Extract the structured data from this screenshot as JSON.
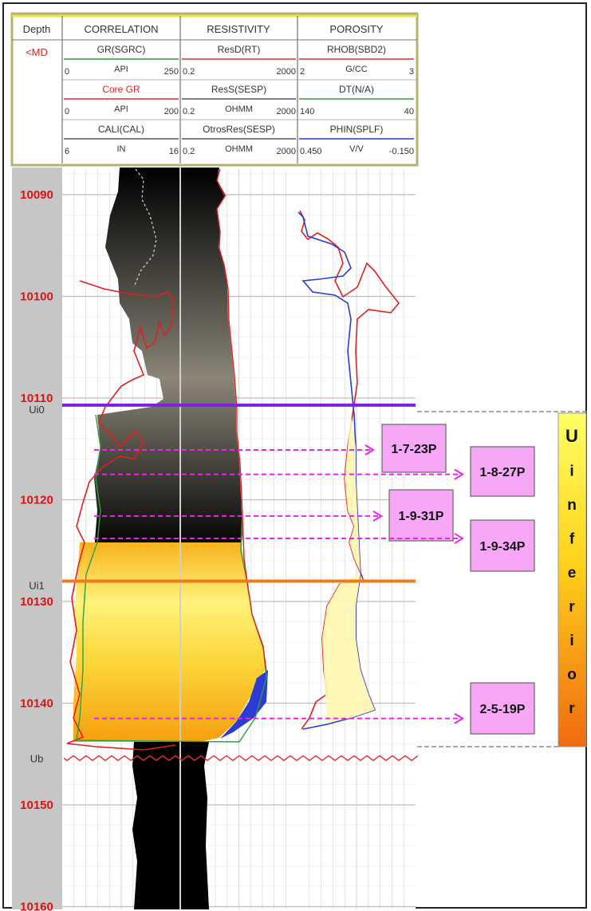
{
  "header": {
    "depth_title": "Depth",
    "depth_unit": "<MD",
    "tracks": [
      {
        "title": "CORRELATION",
        "curves": [
          {
            "name": "GR(SGRC)",
            "unit": "API",
            "min": "0",
            "max": "250",
            "color": "#2e9e3a"
          },
          {
            "name": "Core GR",
            "unit": "API",
            "min": "0",
            "max": "200",
            "color": "#e03030"
          },
          {
            "name": "CALI(CAL)",
            "unit": "IN",
            "min": "6",
            "max": "16",
            "color": "#555555"
          }
        ]
      },
      {
        "title": "RESISTIVITY",
        "curves": [
          {
            "name": "ResD(RT)",
            "unit": "",
            "min": "0.2",
            "max": "2000",
            "color": "#e03030"
          },
          {
            "name": "ResS(SESP)",
            "unit": "OHMM",
            "min": "0.2",
            "max": "2000",
            "color": "#555555"
          },
          {
            "name": "OtrosRes(SESP)",
            "unit": "OHMM",
            "min": "0.2",
            "max": "2000",
            "color": "#555555"
          }
        ]
      },
      {
        "title": "POROSITY",
        "curves": [
          {
            "name": "RHOB(SBD2)",
            "unit": "G/CC",
            "min": "2",
            "max": "3",
            "color": "#e03030"
          },
          {
            "name": "DT(N/A)",
            "unit": "",
            "min": "140",
            "max": "40",
            "color": "#2e9e3a"
          },
          {
            "name": "PHIN(SPLF)",
            "unit": "V/V",
            "min": "0.450",
            "max": "-0.150",
            "color": "#2a3bd6"
          }
        ]
      }
    ]
  },
  "depth_ticks": [
    "10090",
    "10100",
    "10110",
    "10120",
    "10130",
    "10140",
    "10150",
    "10160"
  ],
  "markers": [
    {
      "label": "Ui0",
      "depth": 10110.7,
      "color": "#7a22e0"
    },
    {
      "label": "Ui1",
      "depth": 10128.0,
      "color": "#f07b1a"
    },
    {
      "label": "Ub",
      "depth": 10145.4,
      "color": "#e03030"
    }
  ],
  "samples": [
    {
      "label": "1-7-23P",
      "depth": 10115.1
    },
    {
      "label": "1-8-27P",
      "depth": 10117.5
    },
    {
      "label": "1-9-31P",
      "depth": 10121.6
    },
    {
      "label": "1-9-34P",
      "depth": 10123.8
    },
    {
      "label": "2-5-19P",
      "depth": 10141.5
    }
  ],
  "zone": {
    "letters": [
      "U",
      "i",
      "n",
      "f",
      "e",
      "r",
      "i",
      "o",
      "r"
    ],
    "top_depth": 10110.7,
    "base_depth": 10146.0
  }
}
